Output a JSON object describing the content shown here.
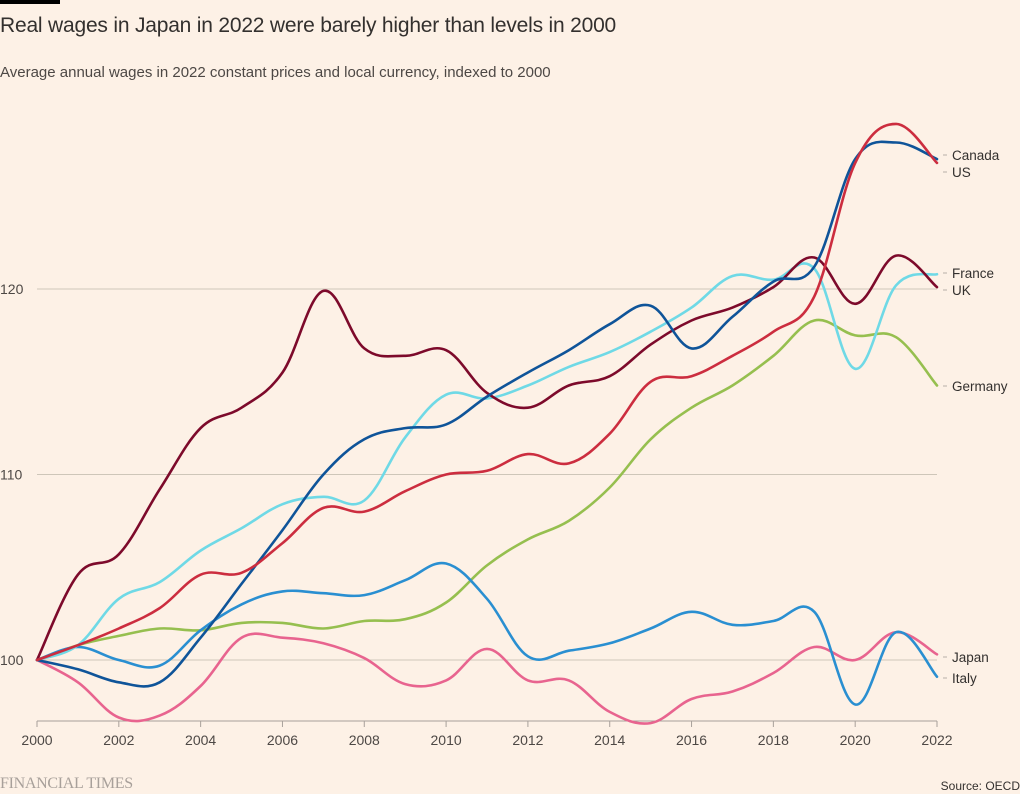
{
  "header": {
    "title": "Real wages in Japan in 2022 were barely higher than levels in 2000",
    "subtitle": "Average annual wages in 2022 constant prices and local currency, indexed to 2000"
  },
  "footer": {
    "brand": "FINANCIAL TIMES",
    "source": "Source: OECD"
  },
  "chart_data": {
    "type": "line",
    "title": "Real wages in Japan in 2022 were barely higher than levels in 2000",
    "subtitle": "Average annual wages in 2022 constant prices and local currency, indexed to 2000",
    "xlabel": "",
    "ylabel": "",
    "x": [
      2000,
      2001,
      2002,
      2003,
      2004,
      2005,
      2006,
      2007,
      2008,
      2009,
      2010,
      2011,
      2012,
      2013,
      2014,
      2015,
      2016,
      2017,
      2018,
      2019,
      2020,
      2021,
      2022
    ],
    "xticks": [
      "2000",
      "2002",
      "2004",
      "2006",
      "2008",
      "2010",
      "2012",
      "2014",
      "2016",
      "2018",
      "2020",
      "2022"
    ],
    "yticks": [
      "100",
      "110",
      "120"
    ],
    "ylim": [
      96,
      131
    ],
    "xlim": [
      2000,
      2022
    ],
    "grid": "horizontal",
    "legend": "direct labels at right end of lines",
    "series": [
      {
        "name": "Canada",
        "color": "#cc2d3f",
        "values": [
          100,
          100.8,
          101.7,
          102.8,
          104.6,
          104.7,
          106.3,
          108.2,
          108.0,
          109.1,
          110.0,
          110.2,
          111.1,
          110.6,
          112.2,
          115.0,
          115.3,
          116.4,
          117.7,
          119.6,
          126.8,
          128.9,
          126.8
        ]
      },
      {
        "name": "US",
        "color": "#0f5499",
        "values": [
          100,
          99.5,
          98.8,
          98.8,
          101.2,
          104.1,
          107.0,
          110.0,
          111.9,
          112.5,
          112.7,
          114.2,
          115.5,
          116.7,
          118.1,
          119.1,
          116.8,
          118.5,
          120.4,
          121.2,
          127.0,
          127.9,
          127.0
        ]
      },
      {
        "name": "France",
        "color": "#6fd9e6",
        "values": [
          100,
          100.8,
          103.3,
          104.2,
          105.9,
          107.1,
          108.4,
          108.8,
          108.6,
          112.0,
          114.3,
          114.1,
          114.8,
          115.8,
          116.6,
          117.7,
          119.0,
          120.7,
          120.5,
          121.1,
          115.7,
          120.2,
          120.8
        ]
      },
      {
        "name": "UK",
        "color": "#7d0a2b",
        "values": [
          100,
          104.6,
          105.7,
          109.2,
          112.5,
          113.6,
          115.5,
          119.9,
          116.8,
          116.4,
          116.7,
          114.4,
          113.6,
          114.8,
          115.3,
          117.0,
          118.3,
          119.0,
          120.1,
          121.7,
          119.2,
          121.8,
          120.1
        ]
      },
      {
        "name": "Germany",
        "color": "#96bf4f",
        "values": [
          100,
          100.8,
          101.3,
          101.7,
          101.6,
          102.0,
          102.0,
          101.7,
          102.1,
          102.2,
          103.1,
          105.1,
          106.5,
          107.5,
          109.3,
          111.9,
          113.6,
          114.8,
          116.4,
          118.3,
          117.5,
          117.4,
          114.8
        ]
      },
      {
        "name": "Japan",
        "color": "#e8648f",
        "values": [
          100,
          98.8,
          96.9,
          97.0,
          98.6,
          101.2,
          101.2,
          100.9,
          100.1,
          98.7,
          98.9,
          100.6,
          98.9,
          98.9,
          97.2,
          96.6,
          97.9,
          98.3,
          99.3,
          100.7,
          100.0,
          101.5,
          100.3
        ]
      },
      {
        "name": "Italy",
        "color": "#2a8fd1",
        "values": [
          100,
          100.7,
          100.0,
          99.7,
          101.6,
          103.0,
          103.7,
          103.6,
          103.5,
          104.3,
          105.2,
          103.3,
          100.2,
          100.5,
          100.9,
          101.7,
          102.6,
          101.9,
          102.1,
          102.6,
          97.6,
          101.5,
          99.1
        ]
      }
    ]
  }
}
